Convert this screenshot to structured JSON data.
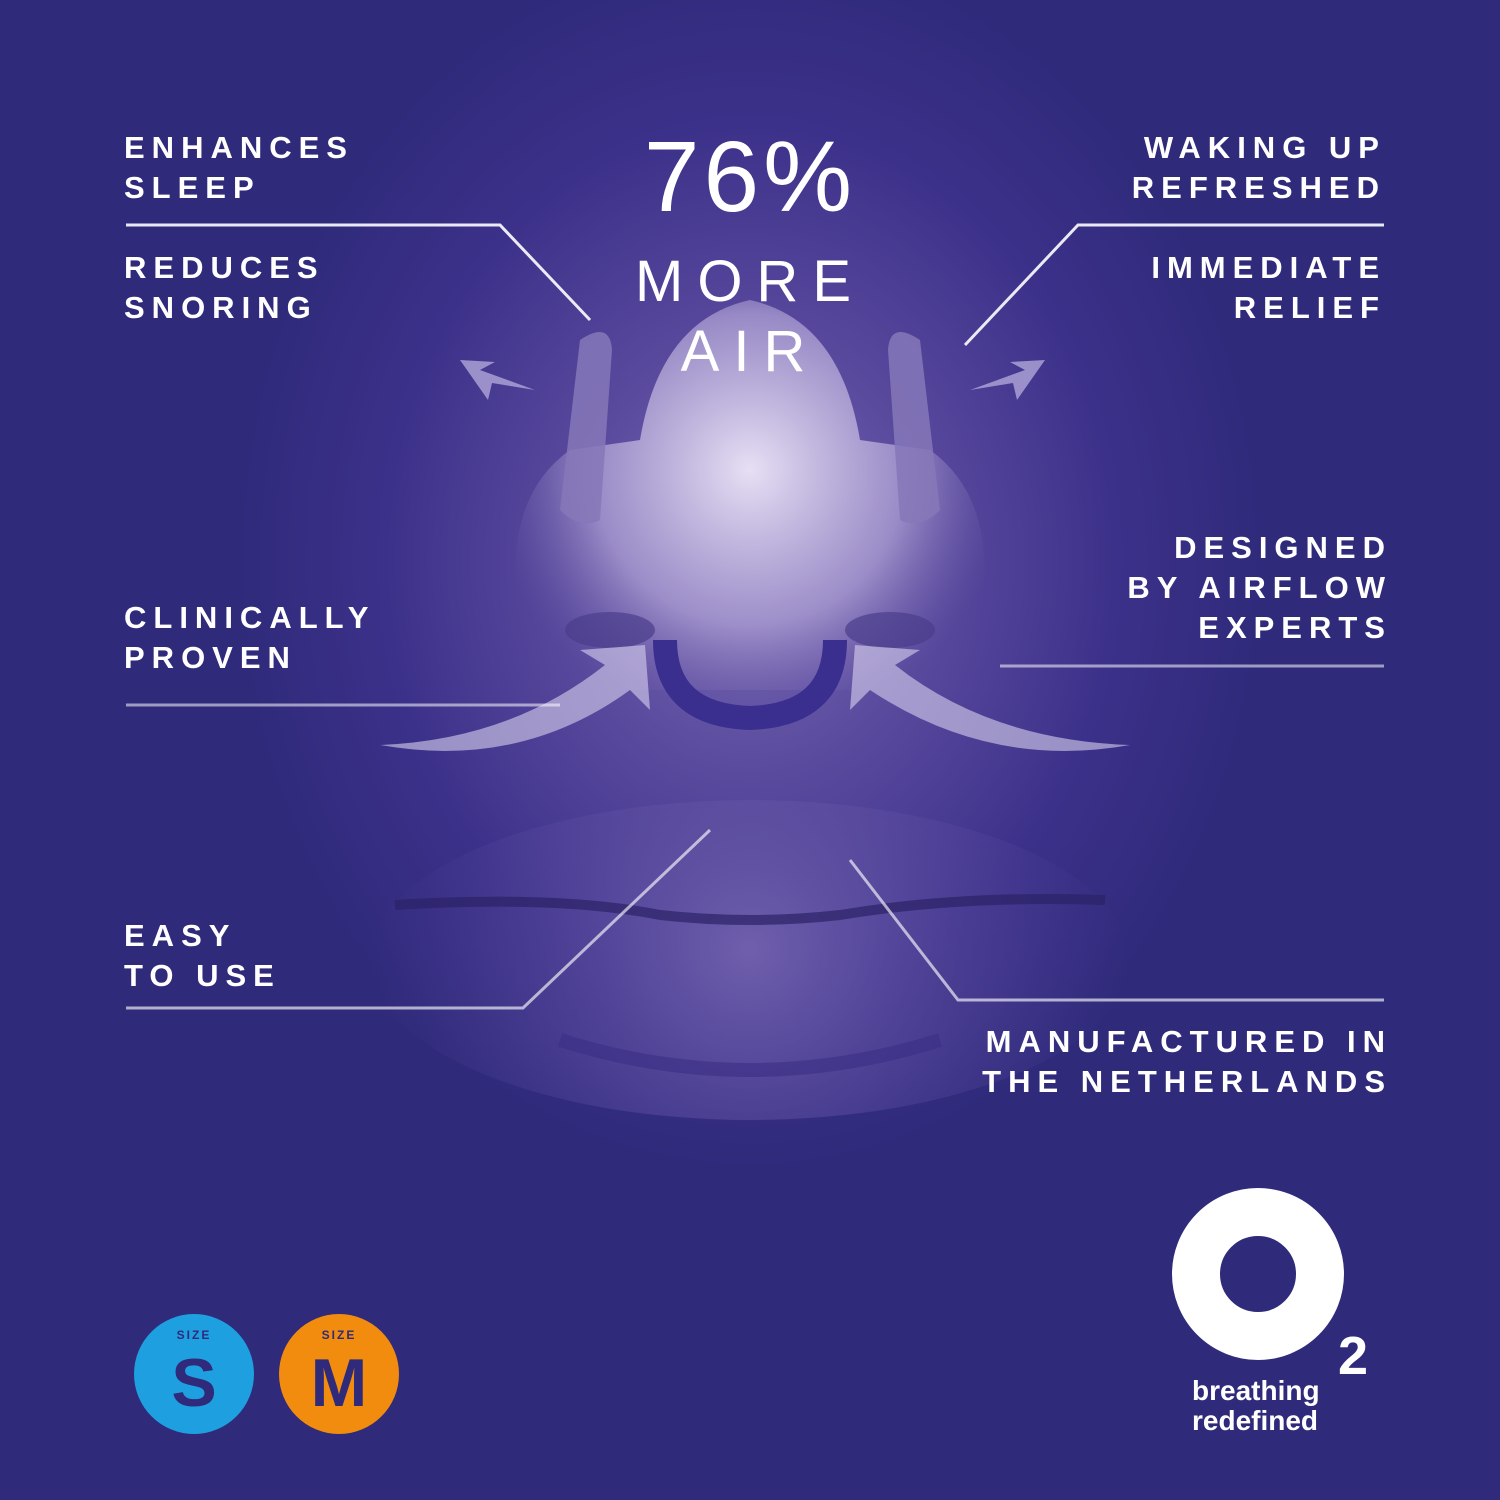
{
  "headline": {
    "percent": "76%",
    "line1": "MORE",
    "line2": "AIR"
  },
  "features": {
    "enhances_sleep": "ENHANCES\nSLEEP",
    "reduces_snoring": "REDUCES\nSNORING",
    "clinically_proven": "CLINICALLY\nPROVEN",
    "easy_to_use": "EASY\nTO USE",
    "waking_up": "WAKING UP\nREFRESHED",
    "immediate_relief": "IMMEDIATE\nRELIEF",
    "designed": "DESIGNED\nBY AIRFLOW\nEXPERTS",
    "manufactured": "MANUFACTURED IN\nTHE NETHERLANDS"
  },
  "sizes": [
    {
      "label": "SIZE",
      "letter": "S",
      "color": "#1ea0e0"
    },
    {
      "label": "SIZE",
      "letter": "M",
      "color": "#f28c0f"
    }
  ],
  "logo": {
    "subscript": "2",
    "tagline": "breathing\nredefined"
  },
  "colors": {
    "background": "#2f2a7a",
    "accent": "#3a2f8f"
  }
}
